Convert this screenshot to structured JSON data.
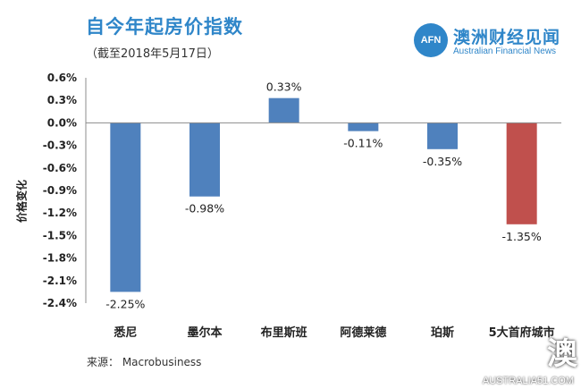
{
  "header": {
    "title": "自今年起房价指数",
    "subtitle": "（截至2018年5月17日）"
  },
  "logo": {
    "badge": "AFN",
    "name_cn": "澳洲财经见闻",
    "name_en": "Australian Financial News"
  },
  "source": "来源： Macrobusiness",
  "stamp": {
    "glyph": "澳",
    "domain": "AUSTRALIA51.COM"
  },
  "colors": {
    "accent": "#2f86c9",
    "bar_blue": "#4f81bd",
    "bar_red": "#c0504d"
  },
  "chart_data": {
    "type": "bar",
    "title": "自今年起房价指数",
    "subtitle": "（截至2018年5月17日）",
    "xlabel": "",
    "ylabel": "价格变化",
    "categories": [
      "悉尼",
      "墨尔本",
      "布里斯班",
      "阿德莱德",
      "珀斯",
      "5大首府城市"
    ],
    "values": [
      -2.25,
      -0.98,
      0.33,
      -0.11,
      -0.35,
      -1.35
    ],
    "data_labels": [
      "-2.25%",
      "-0.98%",
      "0.33%",
      "-0.11%",
      "-0.35%",
      "-1.35%"
    ],
    "bar_colors": [
      "#4f81bd",
      "#4f81bd",
      "#4f81bd",
      "#4f81bd",
      "#4f81bd",
      "#c0504d"
    ],
    "ylim": [
      -2.4,
      0.6
    ],
    "yticks": [
      0.6,
      0.3,
      0.0,
      -0.3,
      -0.6,
      -0.9,
      -1.2,
      -1.5,
      -1.8,
      -2.1,
      -2.4
    ],
    "ytick_labels": [
      "0.6%",
      "0.3%",
      "0.0%",
      "-0.3%",
      "-0.6%",
      "-0.9%",
      "-1.2%",
      "-1.5%",
      "-1.8%",
      "-2.1%",
      "-2.4%"
    ],
    "grid": false,
    "legend": "none"
  }
}
